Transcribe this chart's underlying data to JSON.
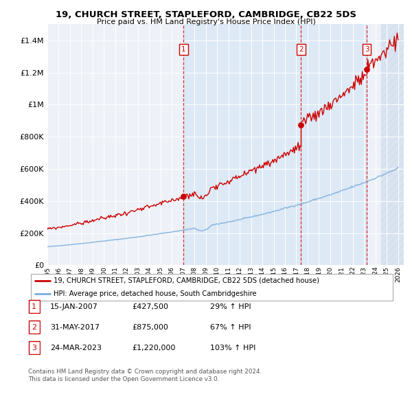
{
  "title1": "19, CHURCH STREET, STAPLEFORD, CAMBRIDGE, CB22 5DS",
  "title2": "Price paid vs. HM Land Registry's House Price Index (HPI)",
  "ylim": [
    0,
    1500000
  ],
  "yticks": [
    0,
    200000,
    400000,
    600000,
    800000,
    1000000,
    1200000,
    1400000
  ],
  "ytick_labels": [
    "£0",
    "£200K",
    "£400K",
    "£600K",
    "£800K",
    "£1M",
    "£1.2M",
    "£1.4M"
  ],
  "plot_bg": "#eef2f8",
  "hpi_color": "#7aaddc",
  "price_color": "#cc0000",
  "sale1_price": 427500,
  "sale1_x": 2007.04,
  "sale2_price": 875000,
  "sale2_x": 2017.42,
  "sale3_price": 1220000,
  "sale3_x": 2023.23,
  "sale1_date": "15-JAN-2007",
  "sale2_date": "31-MAY-2017",
  "sale3_date": "24-MAR-2023",
  "sale1_pct": "29%",
  "sale2_pct": "67%",
  "sale3_pct": "103%",
  "legend_label_price": "19, CHURCH STREET, STAPLEFORD, CAMBRIDGE, CB22 5DS (detached house)",
  "legend_label_hpi": "HPI: Average price, detached house, South Cambridgeshire",
  "footnote1": "Contains HM Land Registry data © Crown copyright and database right 2024.",
  "footnote2": "This data is licensed under the Open Government Licence v3.0.",
  "xmin": 1995,
  "xmax": 2026.5,
  "hatch_start": 2024.5
}
